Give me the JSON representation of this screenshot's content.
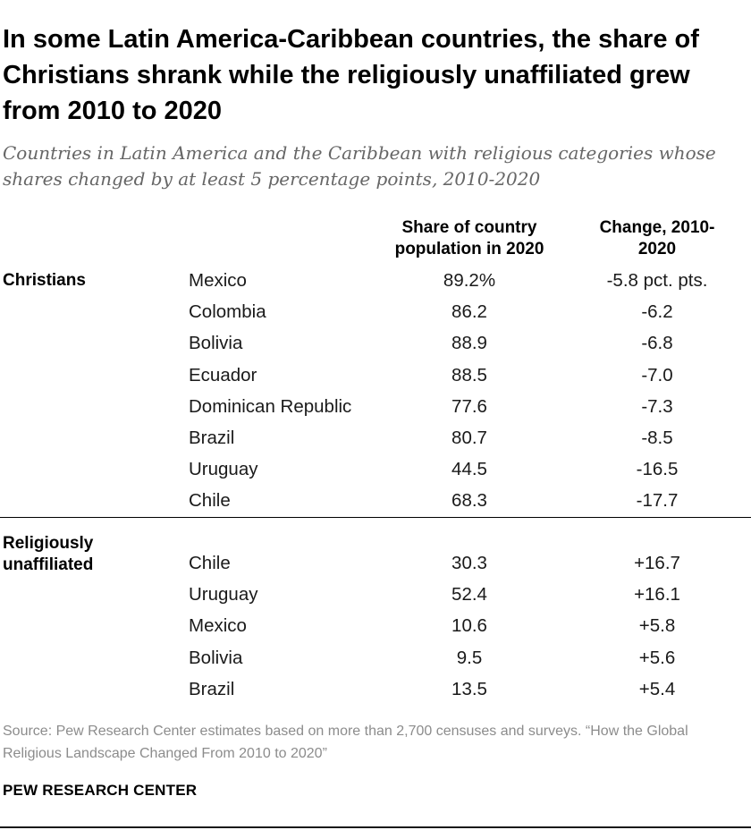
{
  "title": "In some Latin America-Caribbean countries, the share of Christians shrank while the religiously unaffiliated grew from 2010 to 2020",
  "subtitle": "Countries in Latin America and the Caribbean with religious categories whose shares changed by at least 5 percentage points, 2010-2020",
  "columns": {
    "share": "Share of country population in 2020",
    "change": "Change, 2010-2020"
  },
  "source": "Source: Pew Research Center estimates based on more than 2,700 censuses and surveys. “How the Global Religious Landscape Changed From 2010 to 2020”",
  "brand": "PEW RESEARCH CENTER",
  "chart_data": {
    "type": "table",
    "title": "In some Latin America-Caribbean countries, the share of Christians shrank while the religiously unaffiliated grew from 2010 to 2020",
    "columns": [
      "Share of country population in 2020",
      "Change, 2010-2020"
    ],
    "groups": [
      {
        "name": "Christians",
        "rows": [
          {
            "country": "Mexico",
            "share": "89.2%",
            "change": "-5.8 pct. pts."
          },
          {
            "country": "Colombia",
            "share": "86.2",
            "change": "-6.2"
          },
          {
            "country": "Bolivia",
            "share": "88.9",
            "change": "-6.8"
          },
          {
            "country": "Ecuador",
            "share": "88.5",
            "change": "-7.0"
          },
          {
            "country": "Dominican Republic",
            "share": "77.6",
            "change": "-7.3"
          },
          {
            "country": "Brazil",
            "share": "80.7",
            "change": "-8.5"
          },
          {
            "country": "Uruguay",
            "share": "44.5",
            "change": "-16.5"
          },
          {
            "country": "Chile",
            "share": "68.3",
            "change": "-17.7"
          }
        ]
      },
      {
        "name": "Religiously unaffiliated",
        "rows": [
          {
            "country": "Chile",
            "share": "30.3",
            "change": "+16.7"
          },
          {
            "country": "Uruguay",
            "share": "52.4",
            "change": "+16.1"
          },
          {
            "country": "Mexico",
            "share": "10.6",
            "change": "+5.8"
          },
          {
            "country": "Bolivia",
            "share": "9.5",
            "change": "+5.6"
          },
          {
            "country": "Brazil",
            "share": "13.5",
            "change": "+5.4"
          }
        ]
      }
    ]
  }
}
